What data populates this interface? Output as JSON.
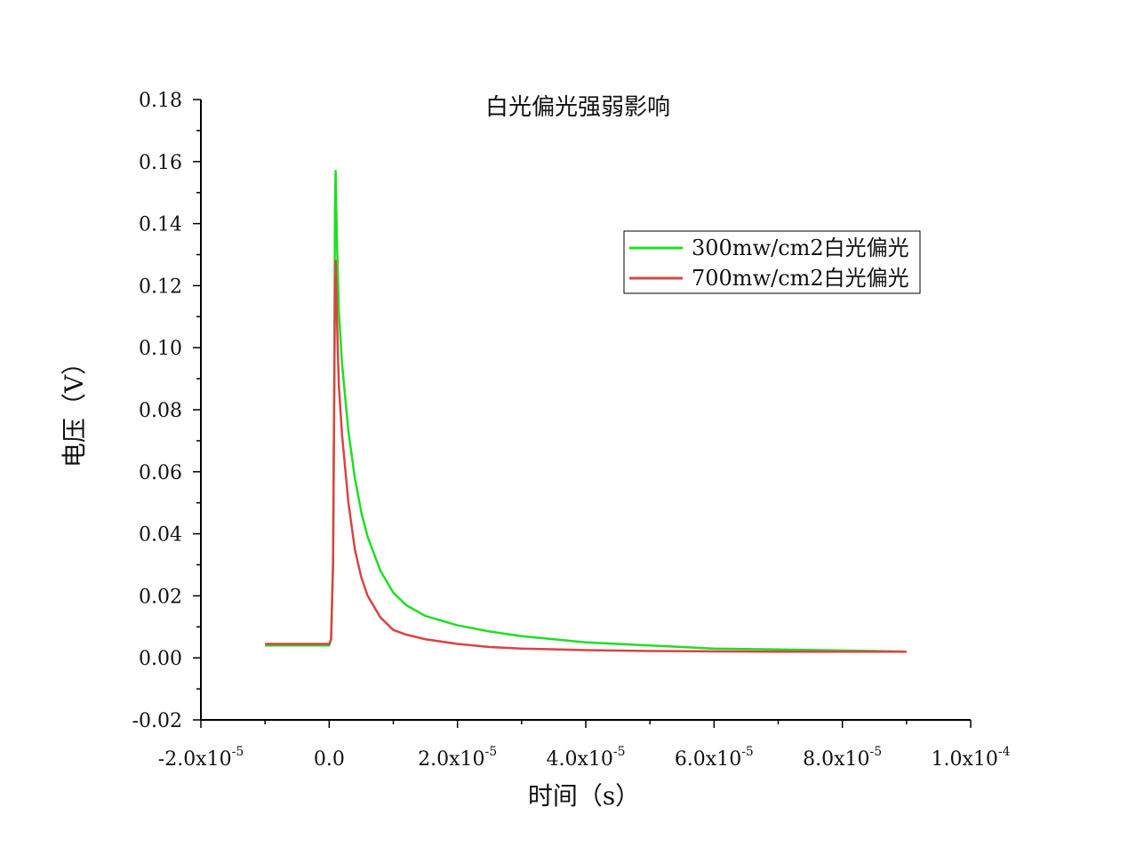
{
  "chart_data": {
    "type": "line",
    "title": "白光偏光强弱影响",
    "xlabel": "时间（s）",
    "ylabel": "电压（V）",
    "xlim": [
      -2e-05,
      0.0001
    ],
    "ylim": [
      -0.02,
      0.18
    ],
    "grid": false,
    "legend_position": "top-right",
    "x_ticks": [
      {
        "value": -2e-05,
        "mantissa": "-2.0x10",
        "exponent": "-5"
      },
      {
        "value": 0,
        "mantissa": "0.0",
        "exponent": ""
      },
      {
        "value": 2e-05,
        "mantissa": "2.0x10",
        "exponent": "-5"
      },
      {
        "value": 4e-05,
        "mantissa": "4.0x10",
        "exponent": "-5"
      },
      {
        "value": 6e-05,
        "mantissa": "6.0x10",
        "exponent": "-5"
      },
      {
        "value": 8e-05,
        "mantissa": "8.0x10",
        "exponent": "-5"
      },
      {
        "value": 0.0001,
        "mantissa": "1.0x10",
        "exponent": "-4"
      }
    ],
    "y_ticks": [
      {
        "value": -0.02,
        "label": "-0.02"
      },
      {
        "value": 0.0,
        "label": "0.00"
      },
      {
        "value": 0.02,
        "label": "0.02"
      },
      {
        "value": 0.04,
        "label": "0.04"
      },
      {
        "value": 0.06,
        "label": "0.06"
      },
      {
        "value": 0.08,
        "label": "0.08"
      },
      {
        "value": 0.1,
        "label": "0.10"
      },
      {
        "value": 0.12,
        "label": "0.12"
      },
      {
        "value": 0.14,
        "label": "0.14"
      },
      {
        "value": 0.16,
        "label": "0.16"
      },
      {
        "value": 0.18,
        "label": "0.18"
      }
    ],
    "series": [
      {
        "name": "300mw/cm2白光偏光",
        "color": "#22dd22",
        "x": [
          -1e-05,
          -5e-06,
          0,
          3e-07,
          6e-07,
          8e-07,
          9e-07,
          1e-06,
          1.2e-06,
          1.5e-06,
          2e-06,
          3e-06,
          4e-06,
          5e-06,
          6e-06,
          8e-06,
          1e-05,
          1.2e-05,
          1.5e-05,
          2e-05,
          2.5e-05,
          3e-05,
          4e-05,
          5e-05,
          6e-05,
          7e-05,
          8e-05,
          9e-05
        ],
        "y": [
          0.004,
          0.004,
          0.004,
          0.006,
          0.03,
          0.09,
          0.145,
          0.157,
          0.135,
          0.112,
          0.095,
          0.073,
          0.058,
          0.047,
          0.039,
          0.028,
          0.021,
          0.017,
          0.0135,
          0.0105,
          0.0085,
          0.007,
          0.005,
          0.004,
          0.003,
          0.0027,
          0.0024,
          0.002
        ]
      },
      {
        "name": "700mw/cm2白光偏光",
        "color": "#d84444",
        "x": [
          -1e-05,
          -5e-06,
          0,
          3e-07,
          6e-07,
          8e-07,
          9e-07,
          1e-06,
          1.2e-06,
          1.5e-06,
          2e-06,
          3e-06,
          4e-06,
          5e-06,
          6e-06,
          8e-06,
          1e-05,
          1.2e-05,
          1.5e-05,
          2e-05,
          2.5e-05,
          3e-05,
          4e-05,
          5e-05,
          6e-05,
          7e-05,
          8e-05,
          9e-05
        ],
        "y": [
          0.0045,
          0.0045,
          0.0045,
          0.006,
          0.03,
          0.09,
          0.118,
          0.128,
          0.11,
          0.088,
          0.072,
          0.05,
          0.035,
          0.026,
          0.02,
          0.013,
          0.009,
          0.0075,
          0.006,
          0.0045,
          0.0035,
          0.003,
          0.0025,
          0.0022,
          0.0021,
          0.002,
          0.002,
          0.002
        ]
      }
    ]
  }
}
